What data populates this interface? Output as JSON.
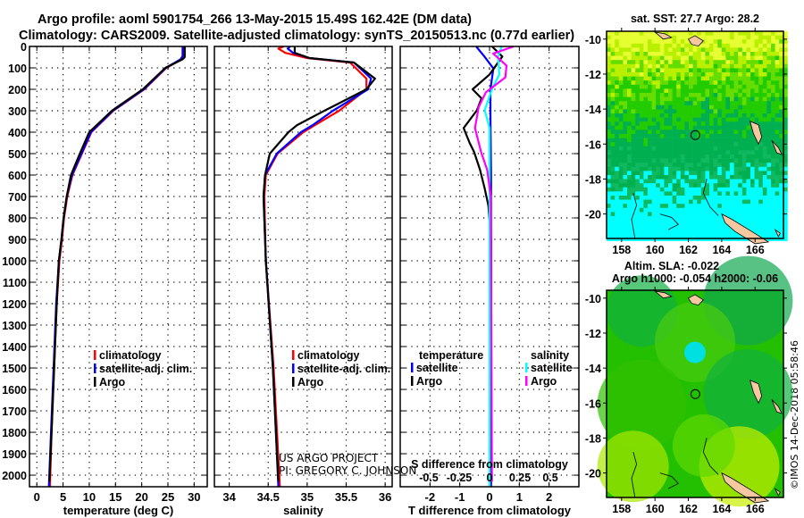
{
  "title": {
    "line1": "Argo profile: aoml 5901754_266 13-May-2015 15.49S 162.42E (DM data)",
    "line2": "Climatology: CARS2009. Satellite-adjusted climatology: synTS_20150513.nc (0.77d earlier)"
  },
  "credit": {
    "project": "US ARGO PROJECT",
    "pi": "PI: GREGORY C. JOHNSON",
    "imos": "©IMOS 14-Dec-2018 05:58:46"
  },
  "colors": {
    "climatology": "#ff0000",
    "satellite": "#0000ff",
    "argo": "#000000",
    "sat_salinity": "#00ffff",
    "argo_salinity": "#ff00ff"
  },
  "chart_data": [
    {
      "type": "line",
      "id": "temperature",
      "xlabel": "temperature (deg C)",
      "ylabel": "",
      "xlim": [
        -1.4,
        32.5
      ],
      "ylim": [
        2054,
        0
      ],
      "xticks": [
        0,
        5,
        10,
        15,
        20,
        25,
        30
      ],
      "yticks": [
        0,
        100,
        200,
        300,
        400,
        500,
        600,
        700,
        800,
        900,
        1000,
        1100,
        1200,
        1300,
        1400,
        1500,
        1600,
        1700,
        1800,
        1900,
        2000
      ],
      "legend": [
        "climatology",
        "satellite-adj. clim.",
        "Argo"
      ],
      "series": [
        {
          "name": "climatology",
          "color": "#ff0000",
          "points": [
            [
              28.0,
              0
            ],
            [
              28.0,
              45
            ],
            [
              27.6,
              60
            ],
            [
              24.7,
              100
            ],
            [
              20.5,
              200
            ],
            [
              14.6,
              300
            ],
            [
              10.4,
              400
            ],
            [
              8.6,
              500
            ],
            [
              6.8,
              600
            ],
            [
              5.8,
              700
            ],
            [
              5.2,
              800
            ],
            [
              4.8,
              900
            ],
            [
              4.3,
              1000
            ],
            [
              3.8,
              1200
            ],
            [
              3.3,
              1500
            ],
            [
              2.8,
              1800
            ],
            [
              2.5,
              2054
            ]
          ]
        },
        {
          "name": "satellite-adj. clim.",
          "color": "#0000ff",
          "points": [
            [
              27.8,
              0
            ],
            [
              27.8,
              45
            ],
            [
              27.4,
              60
            ],
            [
              24.6,
              100
            ],
            [
              20.4,
              200
            ],
            [
              14.5,
              300
            ],
            [
              10.3,
              400
            ],
            [
              8.5,
              500
            ],
            [
              6.7,
              600
            ],
            [
              5.7,
              700
            ],
            [
              5.1,
              800
            ],
            [
              4.7,
              900
            ],
            [
              4.2,
              1000
            ],
            [
              3.7,
              1200
            ],
            [
              3.2,
              1500
            ],
            [
              2.7,
              1800
            ],
            [
              2.3,
              2054
            ]
          ]
        },
        {
          "name": "Argo",
          "color": "#000000",
          "points": [
            [
              28.2,
              0
            ],
            [
              28.2,
              50
            ],
            [
              27.8,
              60
            ],
            [
              24.5,
              100
            ],
            [
              20.2,
              200
            ],
            [
              14.3,
              300
            ],
            [
              10.0,
              400
            ],
            [
              8.2,
              500
            ],
            [
              6.5,
              600
            ],
            [
              5.7,
              700
            ],
            [
              5.1,
              800
            ],
            [
              4.7,
              900
            ],
            [
              4.2,
              1000
            ],
            [
              3.8,
              1200
            ],
            [
              3.3,
              1500
            ],
            [
              2.8,
              1800
            ],
            [
              2.4,
              2030
            ]
          ]
        }
      ]
    },
    {
      "type": "line",
      "id": "salinity",
      "xlabel": "salinity",
      "xlim": [
        33.81,
        36.09
      ],
      "ylim": [
        2054,
        0
      ],
      "xticks": [
        34,
        34.5,
        35,
        35.5,
        36
      ],
      "legend": [
        "climatology",
        "satellite-adj. clim.",
        "Argo"
      ],
      "series": [
        {
          "name": "climatology",
          "color": "#ff0000",
          "points": [
            [
              34.7,
              0
            ],
            [
              34.63,
              10
            ],
            [
              34.72,
              30
            ],
            [
              35.0,
              54
            ],
            [
              35.55,
              75
            ],
            [
              35.76,
              150
            ],
            [
              35.76,
              200
            ],
            [
              35.41,
              300
            ],
            [
              35.1,
              367
            ],
            [
              34.95,
              400
            ],
            [
              34.62,
              500
            ],
            [
              34.47,
              600
            ],
            [
              34.45,
              700
            ],
            [
              34.47,
              1000
            ],
            [
              34.57,
              1500
            ],
            [
              34.65,
              2054
            ]
          ]
        },
        {
          "name": "satellite-adj. clim.",
          "color": "#0000ff",
          "points": [
            [
              34.78,
              0
            ],
            [
              34.75,
              10
            ],
            [
              34.82,
              30
            ],
            [
              35.03,
              54
            ],
            [
              35.6,
              75
            ],
            [
              35.82,
              150
            ],
            [
              35.78,
              200
            ],
            [
              35.33,
              300
            ],
            [
              35.07,
              367
            ],
            [
              34.92,
              400
            ],
            [
              34.61,
              500
            ],
            [
              34.46,
              600
            ],
            [
              34.44,
              700
            ],
            [
              34.47,
              1000
            ],
            [
              34.56,
              1500
            ],
            [
              34.63,
              2054
            ]
          ]
        },
        {
          "name": "Argo",
          "color": "#000000",
          "points": [
            [
              34.84,
              0
            ],
            [
              34.84,
              30
            ],
            [
              35.03,
              54
            ],
            [
              35.6,
              75
            ],
            [
              35.87,
              150
            ],
            [
              35.76,
              200
            ],
            [
              35.22,
              300
            ],
            [
              34.87,
              367
            ],
            [
              34.76,
              400
            ],
            [
              34.52,
              500
            ],
            [
              34.46,
              600
            ],
            [
              34.44,
              700
            ],
            [
              34.47,
              1000
            ],
            [
              34.56,
              1500
            ],
            [
              34.63,
              2030
            ]
          ]
        }
      ]
    },
    {
      "type": "line",
      "id": "differences",
      "xlabel": "T difference from climatology",
      "x2label": "S difference from climatology",
      "xlim": [
        -3,
        3
      ],
      "x2lim": [
        -0.735,
        0.735
      ],
      "ylim": [
        2054,
        0
      ],
      "xticks": [
        -2,
        -1,
        0,
        1,
        2
      ],
      "x2ticks": [
        -0.5,
        -0.25,
        0,
        0.25,
        0.5
      ],
      "legend_temperature": {
        "heading": "temperature",
        "items": [
          "satellite",
          "Argo"
        ]
      },
      "legend_salinity": {
        "heading": "salinity",
        "items": [
          "satellite",
          "Argo"
        ]
      },
      "series": [
        {
          "name": "temperature satellite",
          "axis": "T",
          "color": "#0000ff",
          "points": [
            [
              -0.45,
              0
            ],
            [
              -0.17,
              47
            ],
            [
              0.13,
              103
            ],
            [
              0.03,
              200
            ],
            [
              0.03,
              330
            ],
            [
              0.05,
              600
            ],
            [
              0.05,
              2054
            ]
          ]
        },
        {
          "name": "temperature Argo",
          "axis": "T",
          "color": "#000000",
          "points": [
            [
              0.08,
              0
            ],
            [
              0.43,
              47
            ],
            [
              0.0,
              131
            ],
            [
              -0.57,
              200
            ],
            [
              -0.27,
              242
            ],
            [
              -0.42,
              297
            ],
            [
              -0.87,
              381
            ],
            [
              -0.67,
              450
            ],
            [
              -0.52,
              492
            ],
            [
              -0.32,
              575
            ],
            [
              -0.17,
              658
            ],
            [
              -0.04,
              742
            ],
            [
              0.05,
              900
            ],
            [
              0.05,
              2030
            ]
          ]
        },
        {
          "name": "salinity satellite",
          "axis": "S",
          "color": "#00ffff",
          "points": [
            [
              0.1,
              0
            ],
            [
              0.07,
              47
            ],
            [
              0.08,
              131
            ],
            [
              0.02,
              200
            ],
            [
              -0.04,
              297
            ],
            [
              0.0,
              381
            ],
            [
              0.0,
              2054
            ]
          ]
        },
        {
          "name": "salinity Argo",
          "axis": "S",
          "color": "#ff00ff",
          "points": [
            [
              0.2,
              0
            ],
            [
              0.03,
              33
            ],
            [
              0.14,
              89
            ],
            [
              0.13,
              144
            ],
            [
              -0.03,
              214
            ],
            [
              -0.09,
              283
            ],
            [
              -0.12,
              381
            ],
            [
              -0.07,
              492
            ],
            [
              -0.02,
              575
            ],
            [
              0.01,
              700
            ],
            [
              0.02,
              2030
            ]
          ]
        }
      ]
    },
    {
      "type": "heatmap",
      "id": "sst-map",
      "title": "sat. SST: 27.7 Argo: 28.2",
      "xlim": [
        157.1,
        167.7
      ],
      "ylim": [
        -21.4,
        -9.55
      ],
      "xticks": [
        158,
        160,
        162,
        164,
        166
      ],
      "yticks": [
        -10,
        -12,
        -14,
        -16,
        -18,
        -20
      ],
      "marker": {
        "lon": 162.42,
        "lat": -15.49
      }
    },
    {
      "type": "heatmap",
      "id": "sla-map",
      "title": "Altim. SLA: -0.022",
      "subtitle": "Argo h1000: -0.054 h2000: -0.06",
      "xlim": [
        157.1,
        167.7
      ],
      "ylim": [
        -21.4,
        -9.55
      ],
      "xticks": [
        158,
        160,
        162,
        164,
        166
      ],
      "yticks": [
        -10,
        -12,
        -14,
        -16,
        -18,
        -20
      ],
      "marker": {
        "lon": 162.42,
        "lat": -15.49
      }
    }
  ]
}
